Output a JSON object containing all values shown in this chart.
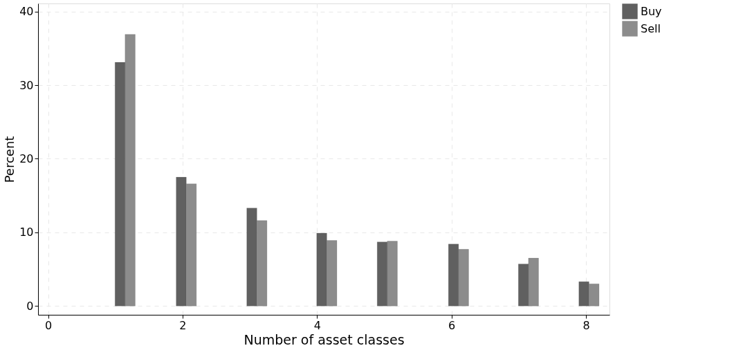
{
  "chart_data": {
    "type": "bar",
    "xlabel": "Number of asset classes",
    "ylabel": "Percent",
    "series": [
      {
        "name": "Buy",
        "color": "#606060",
        "x": [
          1.07,
          1.98,
          3.03,
          4.07,
          4.97,
          6.03,
          7.07,
          7.97
        ],
        "values": [
          33.1,
          17.5,
          13.3,
          9.9,
          8.7,
          8.4,
          5.7,
          3.3
        ]
      },
      {
        "name": "Sell",
        "color": "#8c8c8c",
        "x": [
          1.22,
          2.13,
          3.18,
          4.22,
          5.12,
          6.18,
          7.22,
          8.12
        ],
        "values": [
          36.9,
          16.6,
          11.6,
          8.9,
          8.8,
          7.7,
          6.5,
          3.0
        ]
      }
    ],
    "xlim": [
      -0.15,
      8.35
    ],
    "xticks": [
      0,
      2,
      4,
      6,
      8
    ],
    "ylim": [
      -1.2,
      41.1
    ],
    "yticks": [
      0,
      10,
      20,
      30,
      40
    ],
    "grid": true,
    "legend": "right"
  }
}
